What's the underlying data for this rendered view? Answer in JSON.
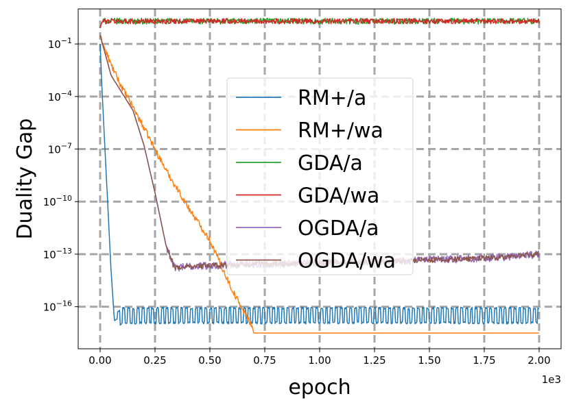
{
  "chart_data": {
    "type": "line",
    "title": "",
    "xlabel": "epoch",
    "ylabel": "Duality Gap",
    "x_offset_text": "1e3",
    "xlim": [
      -0.1,
      2.1
    ],
    "ylim_log10": [
      -18.4,
      1.0
    ],
    "x_ticks": [
      0.0,
      0.25,
      0.5,
      0.75,
      1.0,
      1.25,
      1.5,
      1.75,
      2.0
    ],
    "x_tick_labels": [
      "0.00",
      "0.25",
      "0.50",
      "0.75",
      "1.00",
      "1.25",
      "1.50",
      "1.75",
      "2.00"
    ],
    "y_ticks_exp": [
      -1,
      -4,
      -7,
      -10,
      -13,
      -16
    ],
    "y_tick_labels": [
      {
        "base": "10",
        "exp": "−1"
      },
      {
        "base": "10",
        "exp": "−4"
      },
      {
        "base": "10",
        "exp": "−7"
      },
      {
        "base": "10",
        "exp": "−10"
      },
      {
        "base": "10",
        "exp": "−13"
      },
      {
        "base": "10",
        "exp": "−16"
      }
    ],
    "grid": true,
    "legend_position": "center",
    "series": [
      {
        "name": "RM+/a",
        "color": "#1f77b4",
        "anchors": [
          [
            0.0,
            -1.0
          ],
          [
            0.01,
            -4.0
          ],
          [
            0.03,
            -9.0
          ],
          [
            0.05,
            -14.0
          ],
          [
            0.065,
            -16.8
          ],
          [
            0.1,
            -16.5
          ],
          [
            2.0,
            -16.5
          ]
        ],
        "noise": {
          "type": "oscillate",
          "from": 0.08,
          "period": 0.022,
          "amp": 0.42,
          "jitter": 0.06
        }
      },
      {
        "name": "RM+/wa",
        "color": "#ff7f0e",
        "anchors": [
          [
            0.0,
            -0.6
          ],
          [
            0.05,
            -2.2
          ],
          [
            0.1,
            -3.5
          ],
          [
            0.15,
            -4.6
          ],
          [
            0.2,
            -5.8
          ],
          [
            0.3,
            -8.2
          ],
          [
            0.4,
            -10.3
          ],
          [
            0.5,
            -12.2
          ],
          [
            0.6,
            -15.0
          ],
          [
            0.65,
            -16.2
          ],
          [
            0.69,
            -17.0
          ],
          [
            0.7,
            -17.5
          ],
          [
            2.0,
            -17.5
          ]
        ],
        "noise": {
          "type": "jitter",
          "from": 0.0,
          "to": 0.69,
          "amp": 0.18
        }
      },
      {
        "name": "GDA/a",
        "color": "#2ca02c",
        "anchors": [
          [
            0.0,
            -0.1
          ],
          [
            0.01,
            0.3
          ],
          [
            2.0,
            0.3
          ]
        ],
        "noise": {
          "type": "jitter",
          "from": 0.01,
          "to": 2.0,
          "amp": 0.17
        }
      },
      {
        "name": "GDA/wa",
        "color": "#d62728",
        "anchors": [
          [
            0.0,
            -0.05
          ],
          [
            0.01,
            0.3
          ],
          [
            2.0,
            0.3
          ]
        ],
        "noise": {
          "type": "jitter",
          "from": 0.01,
          "to": 2.0,
          "amp": 0.15
        }
      },
      {
        "name": "OGDA/a",
        "color": "#9467bd",
        "anchors": [
          [
            0.0,
            -0.5
          ],
          [
            0.05,
            -2.8
          ],
          [
            0.1,
            -3.8
          ],
          [
            0.15,
            -4.8
          ],
          [
            0.2,
            -6.8
          ],
          [
            0.25,
            -9.5
          ],
          [
            0.3,
            -12.5
          ],
          [
            0.34,
            -13.8
          ],
          [
            0.4,
            -13.7
          ],
          [
            0.6,
            -13.6
          ],
          [
            1.0,
            -13.5
          ],
          [
            1.3,
            -13.4
          ],
          [
            1.6,
            -13.3
          ],
          [
            1.8,
            -13.2
          ],
          [
            2.0,
            -13.0
          ]
        ],
        "noise": {
          "type": "jitter",
          "from": 0.3,
          "to": 2.0,
          "amp": 0.22
        }
      },
      {
        "name": "OGDA/wa",
        "color": "#8c564b",
        "anchors": [
          [
            0.0,
            -0.5
          ],
          [
            0.05,
            -2.8
          ],
          [
            0.1,
            -3.8
          ],
          [
            0.15,
            -4.8
          ],
          [
            0.2,
            -6.8
          ],
          [
            0.25,
            -9.5
          ],
          [
            0.3,
            -12.5
          ],
          [
            0.34,
            -13.8
          ],
          [
            0.4,
            -13.7
          ],
          [
            0.6,
            -13.6
          ],
          [
            1.0,
            -13.5
          ],
          [
            1.3,
            -13.4
          ],
          [
            1.6,
            -13.3
          ],
          [
            1.8,
            -13.2
          ],
          [
            2.0,
            -13.0
          ]
        ],
        "noise": {
          "type": "jitter",
          "from": 0.3,
          "to": 2.0,
          "amp": 0.15
        }
      }
    ]
  }
}
